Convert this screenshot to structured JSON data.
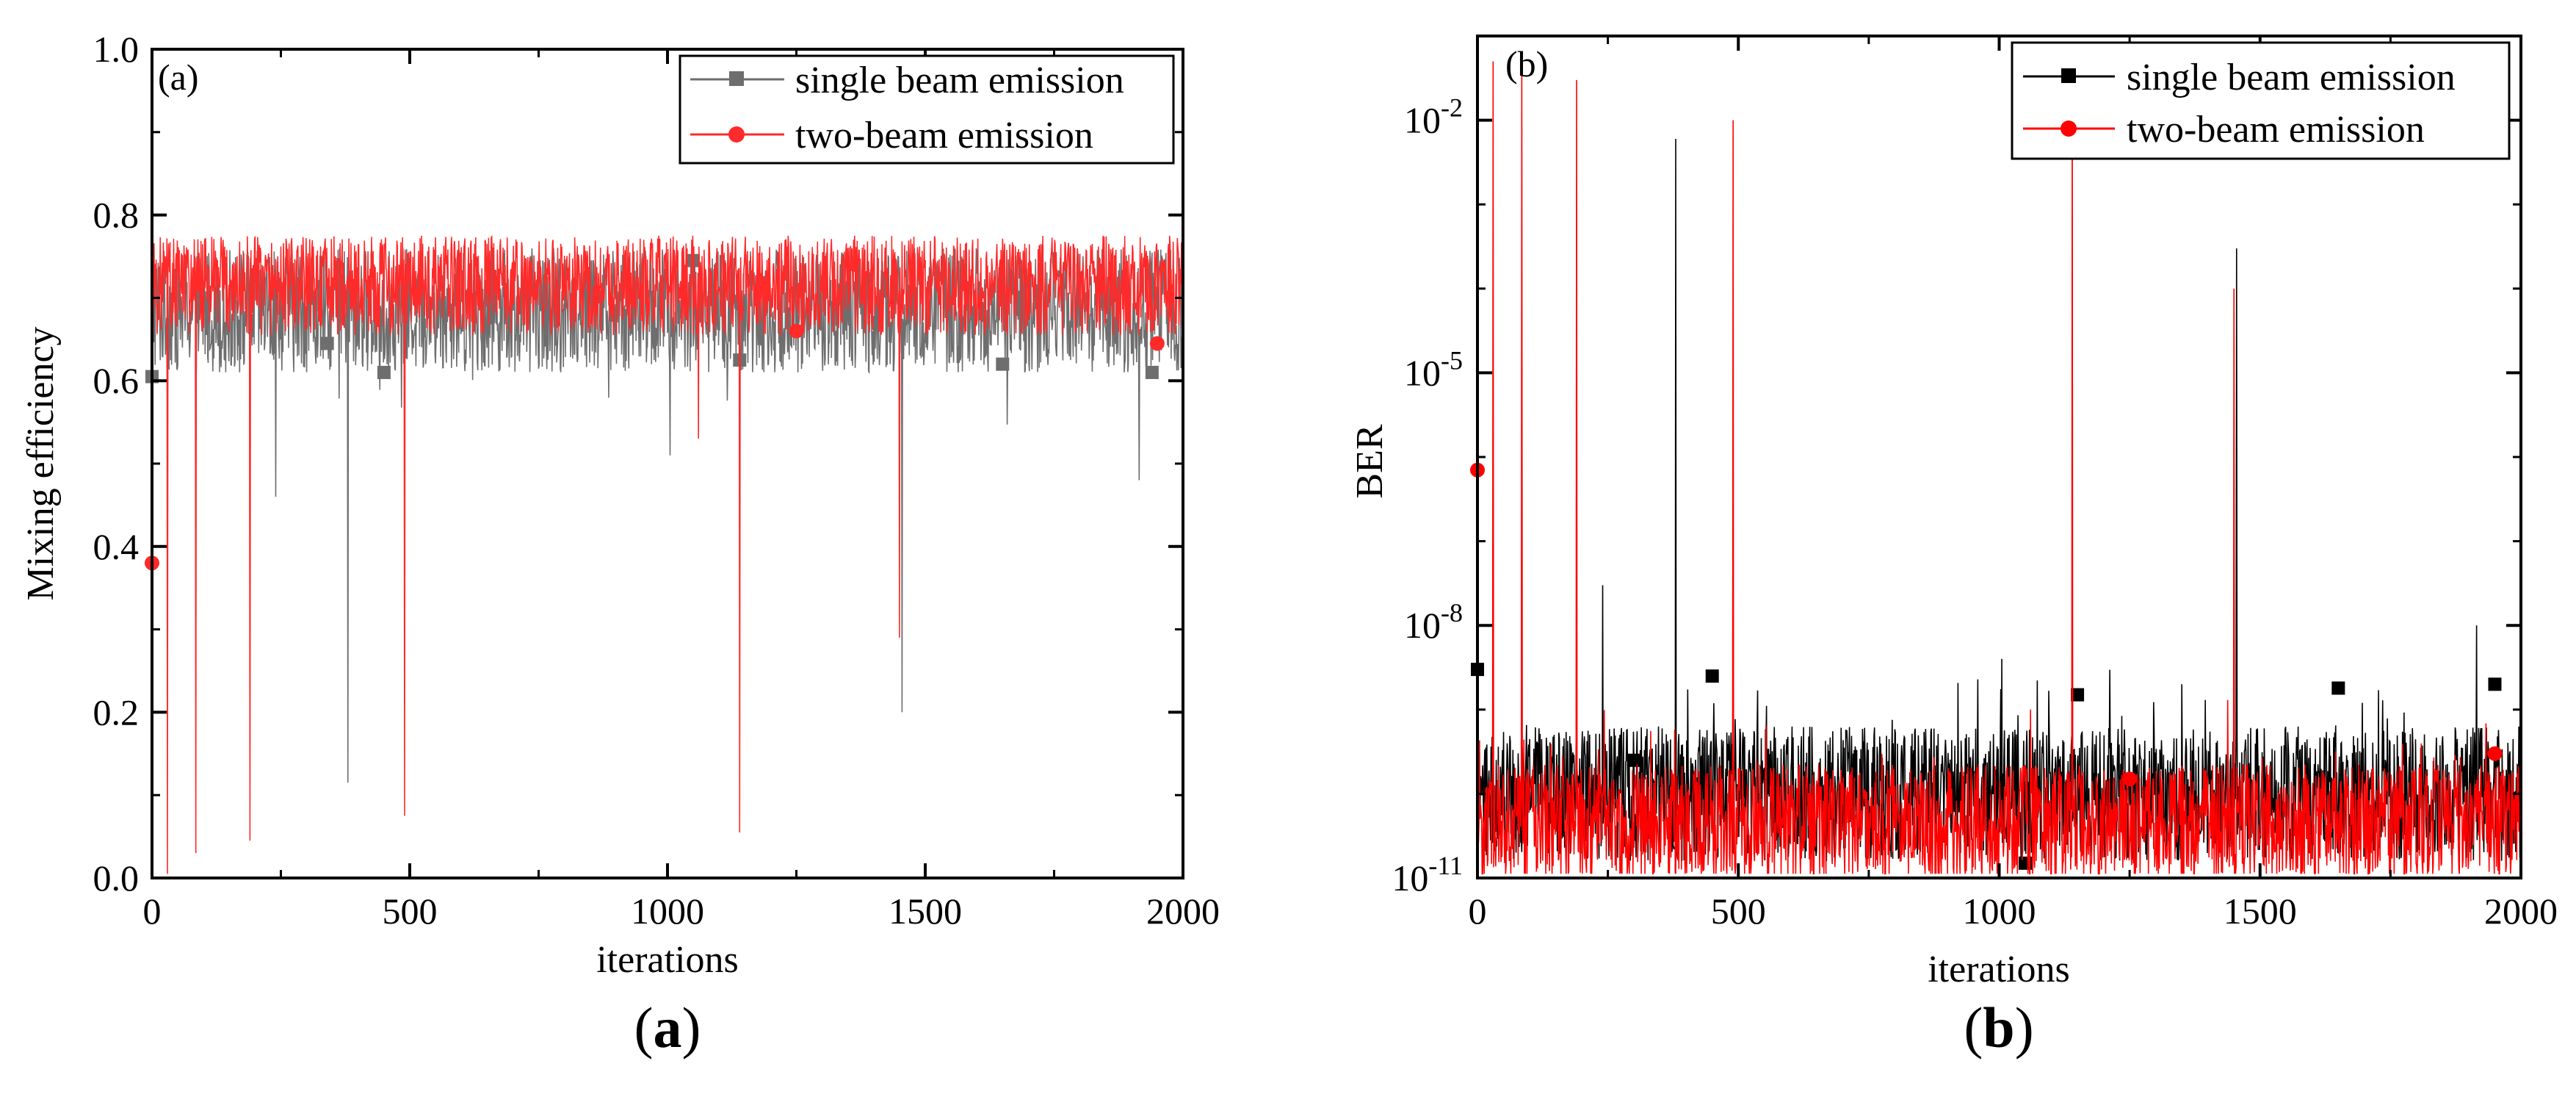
{
  "chart_data": [
    {
      "type": "line",
      "panel_label": "(a)",
      "caption": {
        "open": "(",
        "letter": "a",
        "close": ")"
      },
      "xlabel": "iterations",
      "ylabel": "Mixing efficiency",
      "xlim": [
        0,
        2000
      ],
      "ylim": [
        0,
        1.0
      ],
      "xticks": [
        0,
        500,
        1000,
        1500,
        2000
      ],
      "xtick_labels": [
        "0",
        "500",
        "1000",
        "1500",
        "2000"
      ],
      "yticks": [
        0,
        0.2,
        0.4,
        0.6,
        0.8,
        1.0
      ],
      "ytick_labels": [
        "0.0",
        "0.2",
        "0.4",
        "0.6",
        "0.8",
        "1.0"
      ],
      "legend_position": "top-right",
      "series": [
        {
          "name": "single beam emission",
          "color": "#6e6e6e",
          "marker": "square",
          "baseline": {
            "mean": 0.685,
            "min": 0.6,
            "max": 0.75,
            "iterations": 2000
          },
          "markers": [
            [
              0,
              0.605
            ],
            [
              340,
              0.645
            ],
            [
              450,
              0.61
            ],
            [
              1050,
              0.745
            ],
            [
              1140,
              0.625
            ],
            [
              1650,
              0.62
            ],
            [
              1940,
              0.61
            ]
          ],
          "spikes": [
            [
              240,
              0.46
            ],
            [
              380,
              0.115
            ],
            [
              1005,
              0.51
            ],
            [
              1455,
              0.2
            ],
            [
              1915,
              0.48
            ]
          ]
        },
        {
          "name": "two-beam emission",
          "color": "#ff2a2a",
          "marker": "circle",
          "baseline": {
            "mean": 0.715,
            "min": 0.655,
            "max": 0.775,
            "iterations": 2000
          },
          "markers": [
            [
              0,
              0.38
            ],
            [
              1250,
              0.66
            ],
            [
              1950,
              0.645
            ]
          ],
          "spikes": [
            [
              30,
              0.005
            ],
            [
              85,
              0.03
            ],
            [
              190,
              0.045
            ],
            [
              490,
              0.075
            ],
            [
              1060,
              0.53
            ],
            [
              1140,
              0.055
            ],
            [
              1450,
              0.29
            ]
          ]
        }
      ]
    },
    {
      "type": "line",
      "panel_label": "(b)",
      "caption": {
        "open": "(",
        "letter": "b",
        "close": ")"
      },
      "xlabel": "iterations",
      "ylabel": "BER",
      "yscale": "log",
      "xlim": [
        0,
        2000
      ],
      "ylim": [
        1e-11,
        0.1
      ],
      "xticks": [
        0,
        500,
        1000,
        1500,
        2000
      ],
      "xtick_labels": [
        "0",
        "500",
        "1000",
        "1500",
        "2000"
      ],
      "ytick_labels": [
        {
          "base": "10",
          "exp": "-11",
          "value": 1e-11
        },
        {
          "base": "10",
          "exp": "-8",
          "value": 1e-08
        },
        {
          "base": "10",
          "exp": "-5",
          "value": 1e-05
        },
        {
          "base": "10",
          "exp": "-2",
          "value": 0.01
        }
      ],
      "legend_position": "top-right",
      "series": [
        {
          "name": "single beam emission",
          "color": "#000000",
          "marker": "square",
          "baseline": {
            "log_mean": -10.0,
            "log_min": -10.9,
            "log_max": -9.3,
            "iterations": 2000
          },
          "markers": [
            [
              0,
              3e-09
            ],
            [
              300,
              2.5e-10
            ],
            [
              450,
              2.5e-09
            ],
            [
              1050,
              1.5e-11
            ],
            [
              1150,
              1.5e-09
            ],
            [
              1650,
              1.8e-09
            ],
            [
              1950,
              2e-09
            ]
          ],
          "spikes": [
            [
              240,
              3e-08
            ],
            [
              380,
              0.006
            ],
            [
              1005,
              4e-09
            ],
            [
              1455,
              0.0003
            ],
            [
              1915,
              1e-08
            ],
            [
              1350,
              2e-09
            ]
          ]
        },
        {
          "name": "two-beam emission",
          "color": "#ff0000",
          "marker": "circle",
          "baseline": {
            "log_mean": -10.35,
            "log_min": -11.0,
            "log_max": -9.6,
            "iterations": 2000
          },
          "markers": [
            [
              0,
              7e-07
            ],
            [
              1250,
              1.5e-10
            ],
            [
              1950,
              3e-10
            ]
          ],
          "spikes": [
            [
              30,
              0.05
            ],
            [
              85,
              0.05
            ],
            [
              190,
              0.03
            ],
            [
              490,
              0.01
            ],
            [
              1060,
              1e-09
            ],
            [
              1140,
              0.05
            ],
            [
              1450,
              0.0001
            ]
          ]
        }
      ]
    }
  ]
}
